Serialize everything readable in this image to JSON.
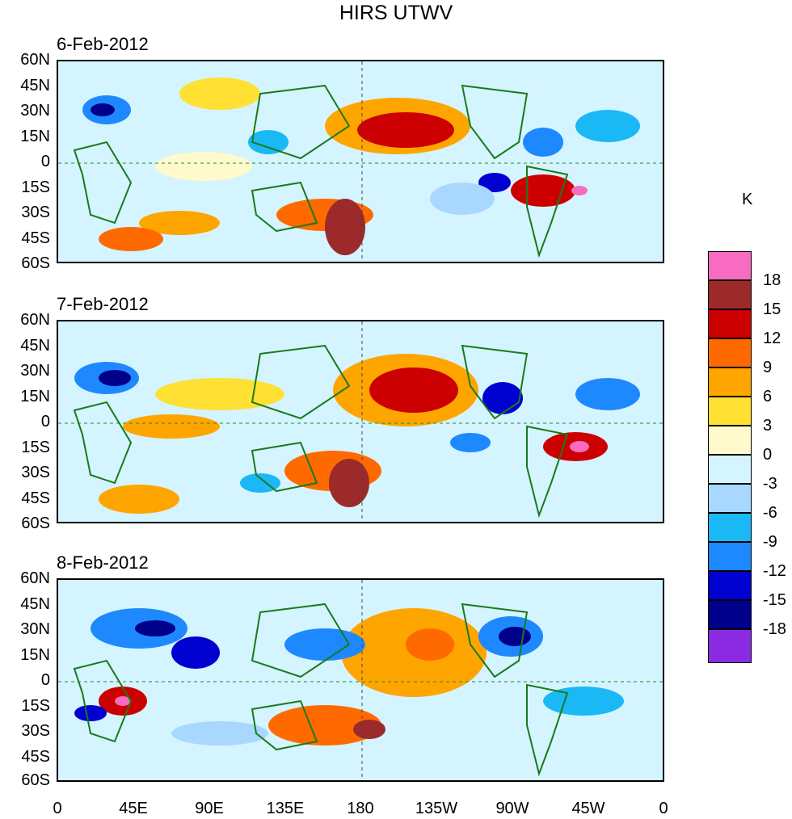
{
  "title": "HIRS UTWV",
  "unit_label": "K",
  "panels": [
    {
      "date": "6-Feb-2012"
    },
    {
      "date": "7-Feb-2012"
    },
    {
      "date": "8-Feb-2012"
    }
  ],
  "lat_labels": [
    "60N",
    "45N",
    "30N",
    "15N",
    "0",
    "15S",
    "30S",
    "45S",
    "60S"
  ],
  "lon_labels": [
    "0",
    "45E",
    "90E",
    "135E",
    "180",
    "135W",
    "90W",
    "45W",
    "0"
  ],
  "colorbar": {
    "labels": [
      "18",
      "15",
      "12",
      "9",
      "6",
      "3",
      "0",
      "-3",
      "-6",
      "-9",
      "-12",
      "-15",
      "-18"
    ],
    "colors": [
      "#f76bc0",
      "#9c2a2a",
      "#cc0000",
      "#ff6a00",
      "#ffa500",
      "#ffe033",
      "#fffacd",
      "#d4f4ff",
      "#a8d8ff",
      "#1ab8f5",
      "#1e88ff",
      "#0000d0",
      "#00008b",
      "#8a2be2"
    ]
  }
}
